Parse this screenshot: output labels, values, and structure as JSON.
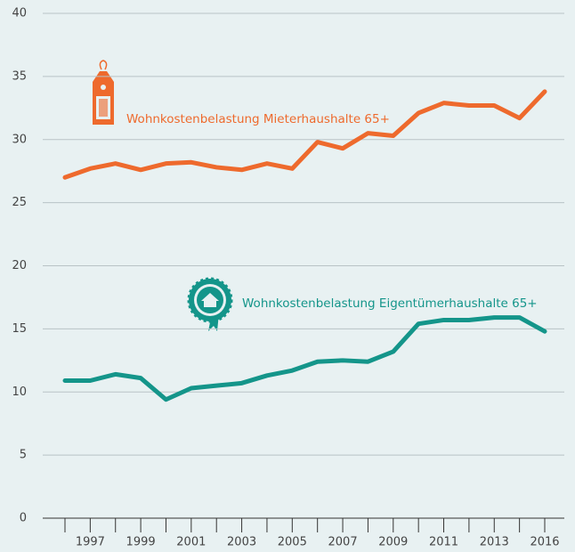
{
  "chart_data": {
    "type": "line",
    "categories": [
      null,
      "1997",
      null,
      "1999",
      null,
      "2001",
      null,
      "2003",
      null,
      "2005",
      null,
      "2007",
      null,
      "2009",
      null,
      "2011",
      null,
      "2013",
      null,
      "2016"
    ],
    "series": [
      {
        "name": "Wohnkostenbelastung Mieterhaushalte 65+",
        "color": "#ee6a2d",
        "values": [
          27.0,
          27.7,
          28.1,
          27.6,
          28.1,
          28.2,
          27.8,
          27.6,
          28.1,
          27.7,
          29.8,
          29.3,
          30.5,
          30.3,
          32.1,
          32.9,
          32.7,
          32.7,
          31.7,
          33.8
        ]
      },
      {
        "name": "Wohnkostenbelastung Eigentümerhaushalte 65+",
        "color": "#14958a",
        "values": [
          10.9,
          10.9,
          11.4,
          11.1,
          9.4,
          10.3,
          10.5,
          10.7,
          11.3,
          11.7,
          12.4,
          12.5,
          12.4,
          13.2,
          15.4,
          15.7,
          15.7,
          15.9,
          15.9,
          14.8
        ]
      }
    ],
    "ylim": [
      0,
      40
    ],
    "yticks": [
      0,
      5,
      10,
      15,
      20,
      25,
      30,
      35,
      40
    ],
    "grid": true
  }
}
